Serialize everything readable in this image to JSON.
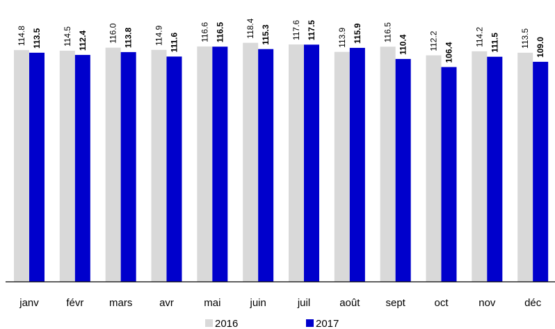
{
  "chart_data": {
    "type": "bar",
    "title": "",
    "xlabel": "",
    "ylabel": "",
    "categories": [
      "janv",
      "févr",
      "mars",
      "avr",
      "mai",
      "juin",
      "juil",
      "août",
      "sept",
      "oct",
      "nov",
      "déc"
    ],
    "series": [
      {
        "name": "2016",
        "color": "#d9d9d9",
        "label_bold": false,
        "values": [
          114.8,
          114.5,
          116.0,
          114.9,
          116.6,
          118.4,
          117.6,
          113.9,
          116.5,
          112.2,
          114.2,
          113.5
        ],
        "labels": [
          "114.8",
          "114.5",
          "116.0",
          "114.9",
          "116.6",
          "118.4",
          "117.6",
          "113.9",
          "116.5",
          "112.2",
          "114.2",
          "113.5"
        ]
      },
      {
        "name": "2017",
        "color": "#0000cc",
        "label_bold": true,
        "values": [
          113.5,
          112.4,
          113.8,
          111.6,
          116.5,
          115.3,
          117.5,
          115.9,
          110.4,
          106.4,
          111.5,
          109.0
        ],
        "labels": [
          "113.5",
          "112.4",
          "113.8",
          "111.6",
          "116.5",
          "115.3",
          "117.5",
          "115.9",
          "110.4",
          "106.4",
          "111.5",
          "109.0"
        ]
      }
    ],
    "ylim": [
      0,
      120
    ],
    "grid": false,
    "legend_position": "bottom"
  }
}
